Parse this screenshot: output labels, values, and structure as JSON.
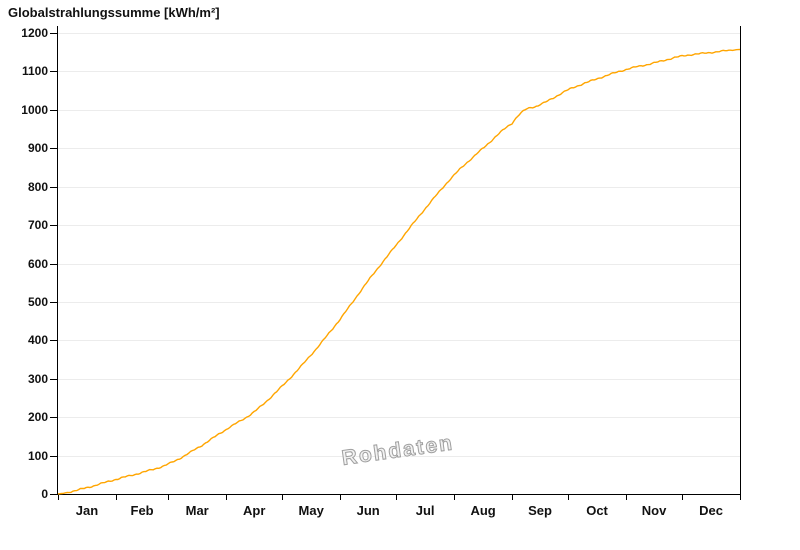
{
  "chart_data": {
    "type": "line",
    "title": "Globalstrahlungssumme [kWh/m²]",
    "xlabel": "",
    "ylabel": "kWh/m²",
    "ylim": [
      0,
      1200
    ],
    "ytick_step": 100,
    "ytick_labels": [
      "0",
      "100",
      "200",
      "300",
      "400",
      "500",
      "600",
      "700",
      "800",
      "900",
      "1000",
      "1100",
      "1200"
    ],
    "x_unit": "day_of_year",
    "xlim_days": [
      0,
      365
    ],
    "month_labels": [
      "Jan",
      "Feb",
      "Mar",
      "Apr",
      "May",
      "Jun",
      "Jul",
      "Aug",
      "Sep",
      "Oct",
      "Nov",
      "Dec"
    ],
    "month_days": [
      31,
      28,
      31,
      30,
      31,
      30,
      31,
      31,
      30,
      31,
      30,
      31
    ],
    "grid": true,
    "legend": "none",
    "line_color": "#FFA500",
    "grid_color": "#ececec",
    "axis_color": "#000000",
    "watermark": "Rohdaten",
    "series": [
      {
        "points": [
          [
            0,
            0
          ],
          [
            15,
            16
          ],
          [
            31,
            38
          ],
          [
            45,
            56
          ],
          [
            59,
            78
          ],
          [
            74,
            118
          ],
          [
            90,
            168
          ],
          [
            105,
            214
          ],
          [
            120,
            281
          ],
          [
            135,
            360
          ],
          [
            151,
            455
          ],
          [
            166,
            555
          ],
          [
            181,
            648
          ],
          [
            196,
            740
          ],
          [
            212,
            830
          ],
          [
            227,
            898
          ],
          [
            243,
            965
          ],
          [
            250,
            1000
          ],
          [
            258,
            1014
          ],
          [
            273,
            1052
          ],
          [
            288,
            1080
          ],
          [
            304,
            1105
          ],
          [
            319,
            1122
          ],
          [
            334,
            1140
          ],
          [
            349,
            1149
          ],
          [
            365,
            1157
          ]
        ]
      }
    ]
  }
}
